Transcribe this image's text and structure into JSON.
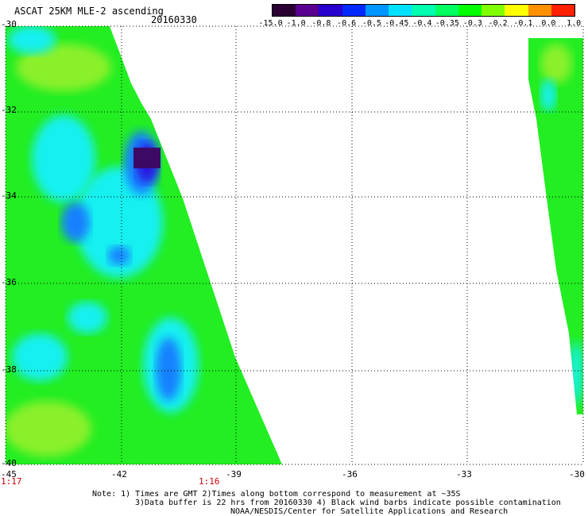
{
  "header": {
    "title": "ASCAT 25KM MLE-2 ascending",
    "date": "20160330"
  },
  "colorbar": {
    "labels": [
      "-15.0",
      "-1.0",
      "-0.8",
      "-0.6",
      "-0.5",
      "-0.45",
      "-0.4",
      "-0.35",
      "-0.3",
      "-0.2",
      "-0.1",
      "0.0",
      "1.0"
    ],
    "colors": [
      "#2a0033",
      "#5a0090",
      "#2800d0",
      "#0028ff",
      "#0096ff",
      "#00e0ff",
      "#00ffb0",
      "#00ff60",
      "#00ff00",
      "#80ff00",
      "#ffff00",
      "#ff9000",
      "#ff2000"
    ]
  },
  "axes": {
    "lat_labels": [
      "-30",
      "-32",
      "-34",
      "-36",
      "-38",
      "-40"
    ],
    "lon_labels": [
      "-45",
      "-42",
      "-39",
      "-36",
      "-33",
      "-30"
    ],
    "time_labels": [
      "1:17",
      "1:16"
    ]
  },
  "notes": {
    "line1": "Note: 1) Times are GMT 2)Times along bottom correspond to measurement at ~35S",
    "line2": "3)Data buffer is 22 hrs from 20160330 4) Black wind barbs indicate possible contamination",
    "line3": "NOAA/NESDIS/Center for Satellite Applications and Research"
  },
  "map_colors": {
    "green": "#22ee22",
    "light_green": "#8af02a",
    "cyan": "#18f0f0",
    "blue": "#1480ff",
    "deep_blue": "#2a14e0",
    "purple": "#3c0a64"
  }
}
